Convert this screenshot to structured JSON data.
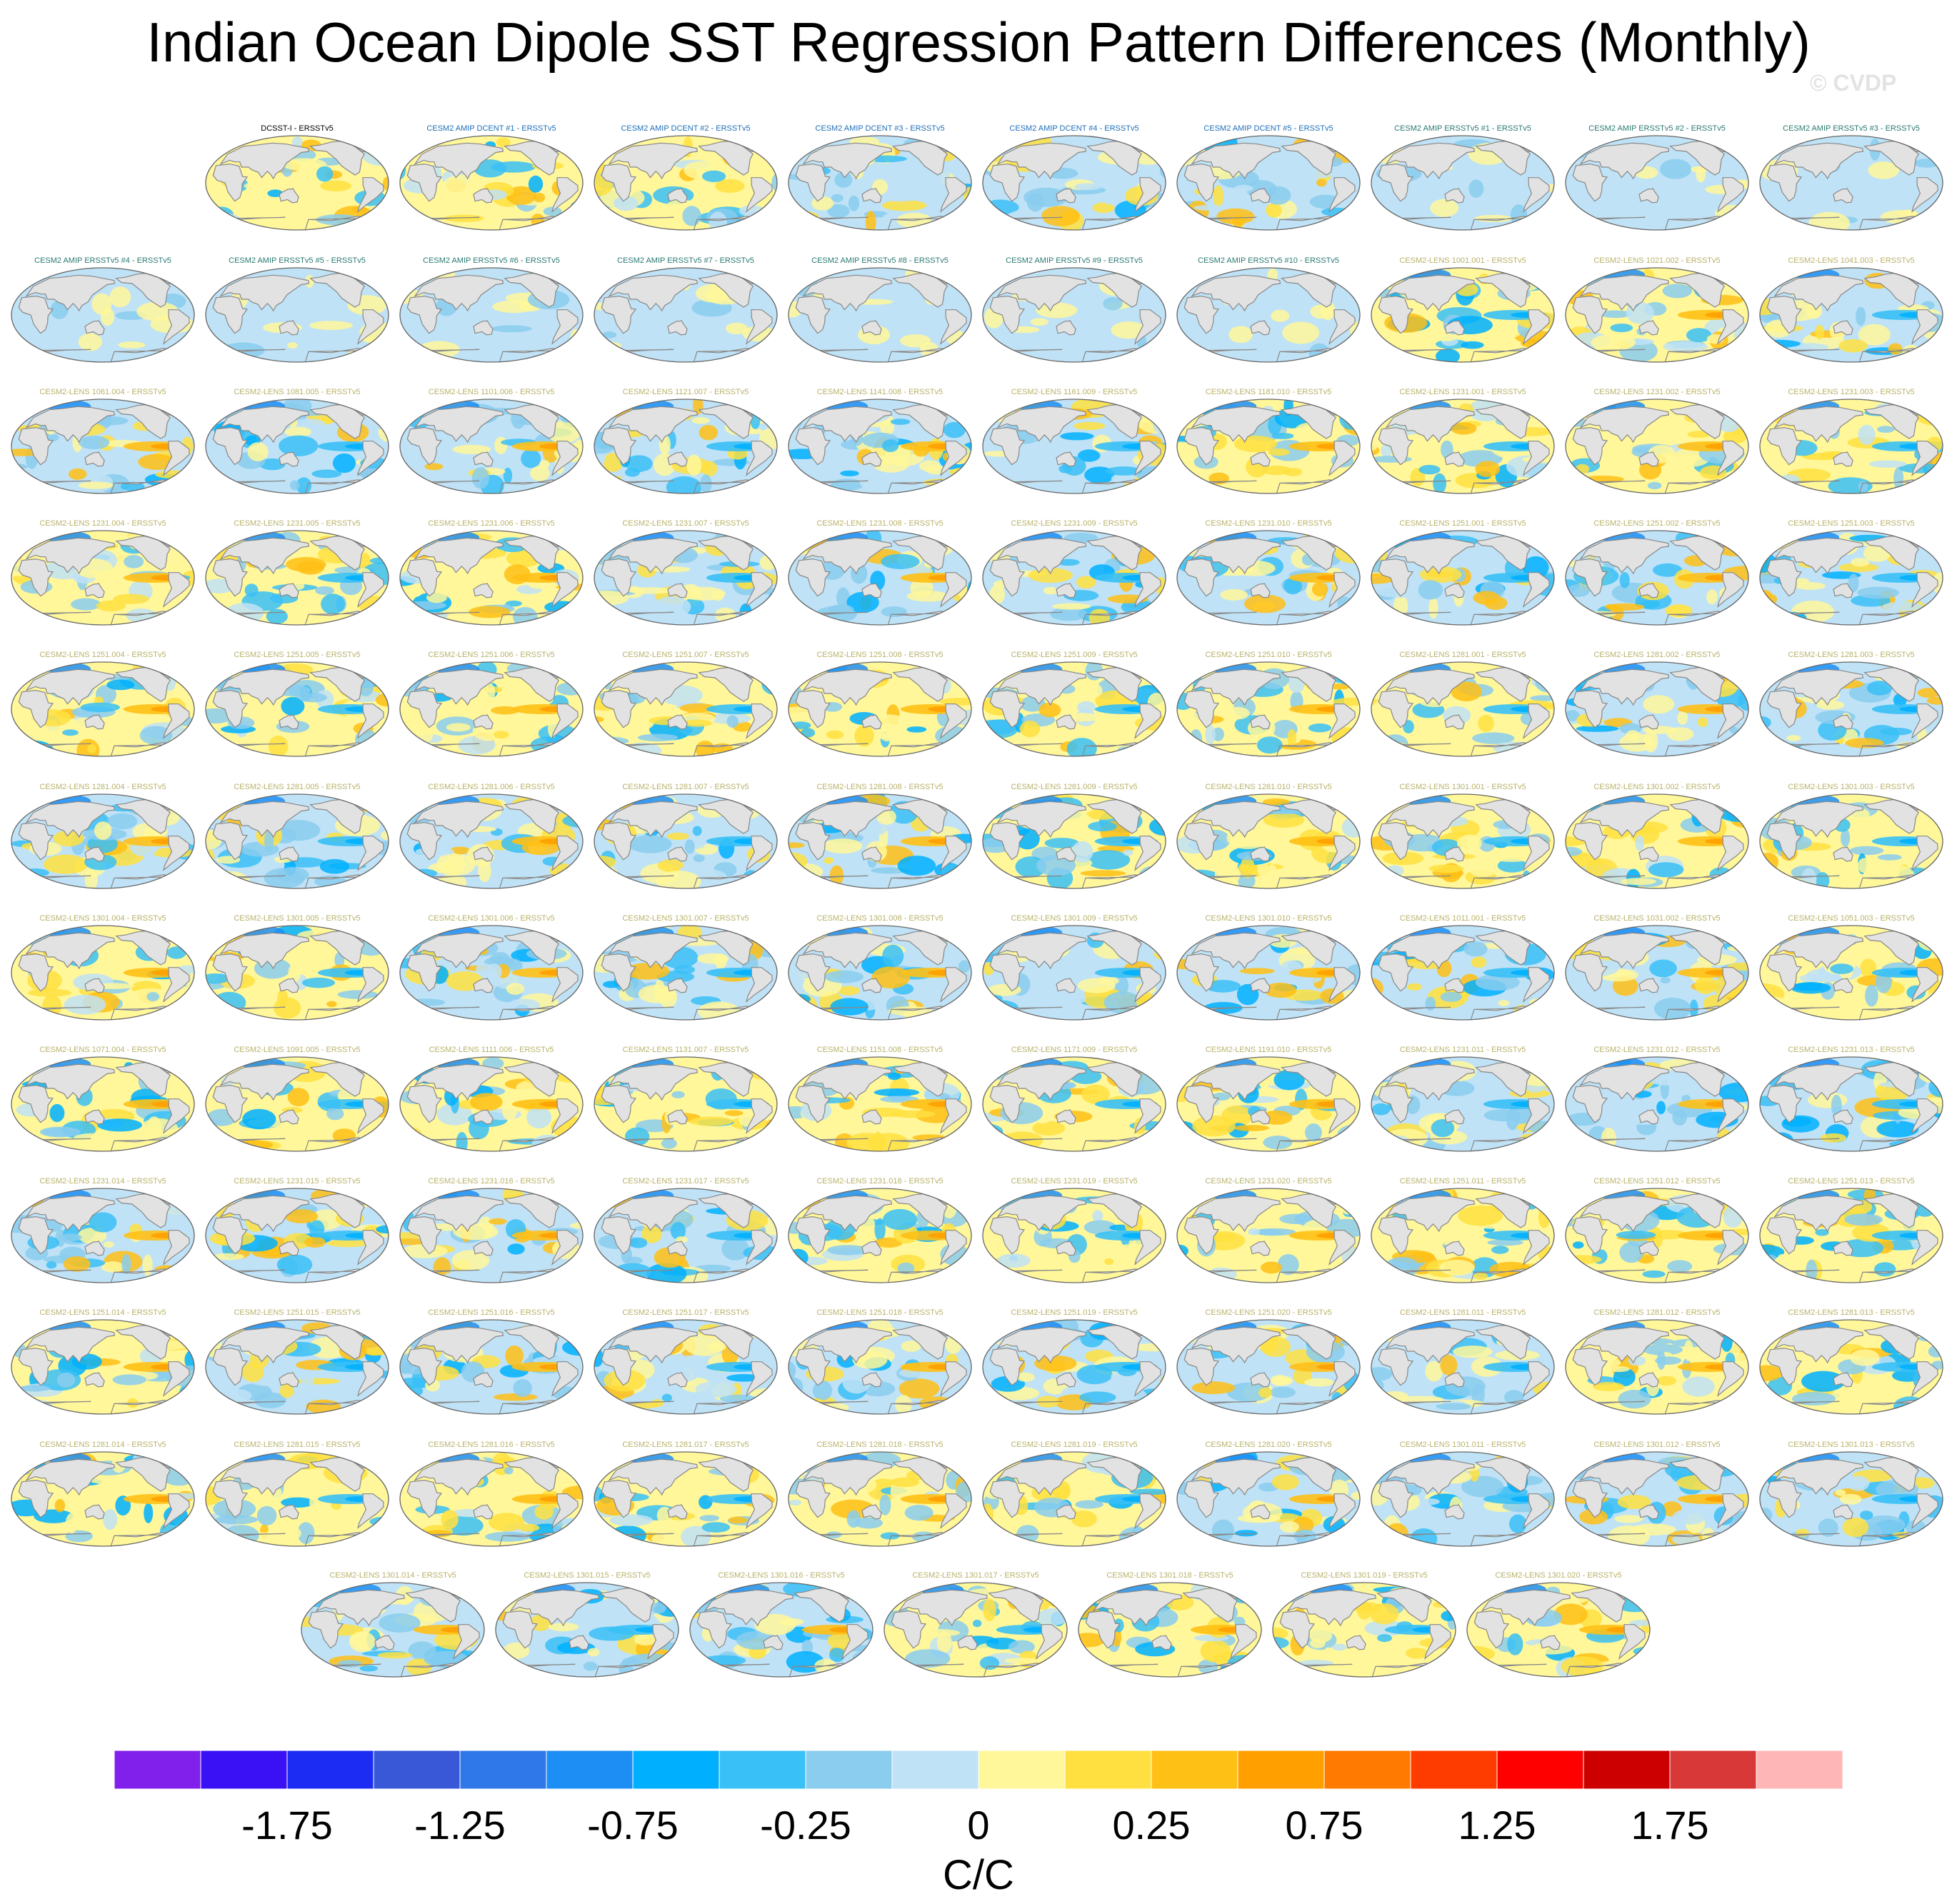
{
  "title": "Indian Ocean Dipole SST Regression Pattern Differences (Monthly)",
  "watermark": "© CVDP",
  "colors": {
    "title_obs": "#000000",
    "title_amip_dcent": "#1f6fb8",
    "title_amip_ersst": "#2a7a72",
    "title_lens": "#b8b26a",
    "land": "#e2e2e2",
    "coast": "#888888"
  },
  "panels": [
    {
      "label": "DCSST-I - ERSSTv5",
      "group": "obs"
    },
    {
      "label": "CESM2 AMIP DCENT #1 - ERSSTv5",
      "group": "amip_dcent"
    },
    {
      "label": "CESM2 AMIP DCENT #2 - ERSSTv5",
      "group": "amip_dcent"
    },
    {
      "label": "CESM2 AMIP DCENT #3 - ERSSTv5",
      "group": "amip_dcent"
    },
    {
      "label": "CESM2 AMIP DCENT #4 - ERSSTv5",
      "group": "amip_dcent"
    },
    {
      "label": "CESM2 AMIP DCENT #5 - ERSSTv5",
      "group": "amip_dcent"
    },
    {
      "label": "CESM2 AMIP ERSSTv5 #1 - ERSSTv5",
      "group": "amip_ersst"
    },
    {
      "label": "CESM2 AMIP ERSSTv5 #2 - ERSSTv5",
      "group": "amip_ersst"
    },
    {
      "label": "CESM2 AMIP ERSSTv5 #3 - ERSSTv5",
      "group": "amip_ersst"
    },
    {
      "label": "CESM2 AMIP ERSSTv5 #4 - ERSSTv5",
      "group": "amip_ersst"
    },
    {
      "label": "CESM2 AMIP ERSSTv5 #5 - ERSSTv5",
      "group": "amip_ersst"
    },
    {
      "label": "CESM2 AMIP ERSSTv5 #6 - ERSSTv5",
      "group": "amip_ersst"
    },
    {
      "label": "CESM2 AMIP ERSSTv5 #7 - ERSSTv5",
      "group": "amip_ersst"
    },
    {
      "label": "CESM2 AMIP ERSSTv5 #8 - ERSSTv5",
      "group": "amip_ersst"
    },
    {
      "label": "CESM2 AMIP ERSSTv5 #9 - ERSSTv5",
      "group": "amip_ersst"
    },
    {
      "label": "CESM2 AMIP ERSSTv5 #10 - ERSSTv5",
      "group": "amip_ersst"
    },
    {
      "label": "CESM2-LENS 1001.001 - ERSSTv5",
      "group": "lens"
    },
    {
      "label": "CESM2-LENS 1021.002 - ERSSTv5",
      "group": "lens"
    },
    {
      "label": "CESM2-LENS 1041.003 - ERSSTv5",
      "group": "lens"
    },
    {
      "label": "CESM2-LENS 1061.004 - ERSSTv5",
      "group": "lens"
    },
    {
      "label": "CESM2-LENS 1081.005 - ERSSTv5",
      "group": "lens"
    },
    {
      "label": "CESM2-LENS 1101.006 - ERSSTv5",
      "group": "lens"
    },
    {
      "label": "CESM2-LENS 1121.007 - ERSSTv5",
      "group": "lens"
    },
    {
      "label": "CESM2-LENS 1141.008 - ERSSTv5",
      "group": "lens"
    },
    {
      "label": "CESM2-LENS 1161.009 - ERSSTv5",
      "group": "lens"
    },
    {
      "label": "CESM2-LENS 1181.010 - ERSSTv5",
      "group": "lens"
    },
    {
      "label": "CESM2-LENS 1231.001 - ERSSTv5",
      "group": "lens"
    },
    {
      "label": "CESM2-LENS 1231.002 - ERSSTv5",
      "group": "lens"
    },
    {
      "label": "CESM2-LENS 1231.003 - ERSSTv5",
      "group": "lens"
    },
    {
      "label": "CESM2-LENS 1231.004 - ERSSTv5",
      "group": "lens"
    },
    {
      "label": "CESM2-LENS 1231.005 - ERSSTv5",
      "group": "lens"
    },
    {
      "label": "CESM2-LENS 1231.006 - ERSSTv5",
      "group": "lens"
    },
    {
      "label": "CESM2-LENS 1231.007 - ERSSTv5",
      "group": "lens"
    },
    {
      "label": "CESM2-LENS 1231.008 - ERSSTv5",
      "group": "lens"
    },
    {
      "label": "CESM2-LENS 1231.009 - ERSSTv5",
      "group": "lens"
    },
    {
      "label": "CESM2-LENS 1231.010 - ERSSTv5",
      "group": "lens"
    },
    {
      "label": "CESM2-LENS 1251.001 - ERSSTv5",
      "group": "lens"
    },
    {
      "label": "CESM2-LENS 1251.002 - ERSSTv5",
      "group": "lens"
    },
    {
      "label": "CESM2-LENS 1251.003 - ERSSTv5",
      "group": "lens"
    },
    {
      "label": "CESM2-LENS 1251.004 - ERSSTv5",
      "group": "lens"
    },
    {
      "label": "CESM2-LENS 1251.005 - ERSSTv5",
      "group": "lens"
    },
    {
      "label": "CESM2-LENS 1251.006 - ERSSTv5",
      "group": "lens"
    },
    {
      "label": "CESM2-LENS 1251.007 - ERSSTv5",
      "group": "lens"
    },
    {
      "label": "CESM2-LENS 1251.008 - ERSSTv5",
      "group": "lens"
    },
    {
      "label": "CESM2-LENS 1251.009 - ERSSTv5",
      "group": "lens"
    },
    {
      "label": "CESM2-LENS 1251.010 - ERSSTv5",
      "group": "lens"
    },
    {
      "label": "CESM2-LENS 1281.001 - ERSSTv5",
      "group": "lens"
    },
    {
      "label": "CESM2-LENS 1281.002 - ERSSTv5",
      "group": "lens"
    },
    {
      "label": "CESM2-LENS 1281.003 - ERSSTv5",
      "group": "lens"
    },
    {
      "label": "CESM2-LENS 1281.004 - ERSSTv5",
      "group": "lens"
    },
    {
      "label": "CESM2-LENS 1281.005 - ERSSTv5",
      "group": "lens"
    },
    {
      "label": "CESM2-LENS 1281.006 - ERSSTv5",
      "group": "lens"
    },
    {
      "label": "CESM2-LENS 1281.007 - ERSSTv5",
      "group": "lens"
    },
    {
      "label": "CESM2-LENS 1281.008 - ERSSTv5",
      "group": "lens"
    },
    {
      "label": "CESM2-LENS 1281.009 - ERSSTv5",
      "group": "lens"
    },
    {
      "label": "CESM2-LENS 1281.010 - ERSSTv5",
      "group": "lens"
    },
    {
      "label": "CESM2-LENS 1301.001 - ERSSTv5",
      "group": "lens"
    },
    {
      "label": "CESM2-LENS 1301.002 - ERSSTv5",
      "group": "lens"
    },
    {
      "label": "CESM2-LENS 1301.003 - ERSSTv5",
      "group": "lens"
    },
    {
      "label": "CESM2-LENS 1301.004 - ERSSTv5",
      "group": "lens"
    },
    {
      "label": "CESM2-LENS 1301.005 - ERSSTv5",
      "group": "lens"
    },
    {
      "label": "CESM2-LENS 1301.006 - ERSSTv5",
      "group": "lens"
    },
    {
      "label": "CESM2-LENS 1301.007 - ERSSTv5",
      "group": "lens"
    },
    {
      "label": "CESM2-LENS 1301.008 - ERSSTv5",
      "group": "lens"
    },
    {
      "label": "CESM2-LENS 1301.009 - ERSSTv5",
      "group": "lens"
    },
    {
      "label": "CESM2-LENS 1301.010 - ERSSTv5",
      "group": "lens"
    },
    {
      "label": "CESM2-LENS 1011.001 - ERSSTv5",
      "group": "lens"
    },
    {
      "label": "CESM2-LENS 1031.002 - ERSSTv5",
      "group": "lens"
    },
    {
      "label": "CESM2-LENS 1051.003 - ERSSTv5",
      "group": "lens"
    },
    {
      "label": "CESM2-LENS 1071.004 - ERSSTv5",
      "group": "lens"
    },
    {
      "label": "CESM2-LENS 1091.005 - ERSSTv5",
      "group": "lens"
    },
    {
      "label": "CESM2-LENS 1111.006 - ERSSTv5",
      "group": "lens"
    },
    {
      "label": "CESM2-LENS 1131.007 - ERSSTv5",
      "group": "lens"
    },
    {
      "label": "CESM2-LENS 1151.008 - ERSSTv5",
      "group": "lens"
    },
    {
      "label": "CESM2-LENS 1171.009 - ERSSTv5",
      "group": "lens"
    },
    {
      "label": "CESM2-LENS 1191.010 - ERSSTv5",
      "group": "lens"
    },
    {
      "label": "CESM2-LENS 1231.011 - ERSSTv5",
      "group": "lens"
    },
    {
      "label": "CESM2-LENS 1231.012 - ERSSTv5",
      "group": "lens"
    },
    {
      "label": "CESM2-LENS 1231.013 - ERSSTv5",
      "group": "lens"
    },
    {
      "label": "CESM2-LENS 1231.014 - ERSSTv5",
      "group": "lens"
    },
    {
      "label": "CESM2-LENS 1231.015 - ERSSTv5",
      "group": "lens"
    },
    {
      "label": "CESM2-LENS 1231.016 - ERSSTv5",
      "group": "lens"
    },
    {
      "label": "CESM2-LENS 1231.017 - ERSSTv5",
      "group": "lens"
    },
    {
      "label": "CESM2-LENS 1231.018 - ERSSTv5",
      "group": "lens"
    },
    {
      "label": "CESM2-LENS 1231.019 - ERSSTv5",
      "group": "lens"
    },
    {
      "label": "CESM2-LENS 1231.020 - ERSSTv5",
      "group": "lens"
    },
    {
      "label": "CESM2-LENS 1251.011 - ERSSTv5",
      "group": "lens"
    },
    {
      "label": "CESM2-LENS 1251.012 - ERSSTv5",
      "group": "lens"
    },
    {
      "label": "CESM2-LENS 1251.013 - ERSSTv5",
      "group": "lens"
    },
    {
      "label": "CESM2-LENS 1251.014 - ERSSTv5",
      "group": "lens"
    },
    {
      "label": "CESM2-LENS 1251.015 - ERSSTv5",
      "group": "lens"
    },
    {
      "label": "CESM2-LENS 1251.016 - ERSSTv5",
      "group": "lens"
    },
    {
      "label": "CESM2-LENS 1251.017 - ERSSTv5",
      "group": "lens"
    },
    {
      "label": "CESM2-LENS 1251.018 - ERSSTv5",
      "group": "lens"
    },
    {
      "label": "CESM2-LENS 1251.019 - ERSSTv5",
      "group": "lens"
    },
    {
      "label": "CESM2-LENS 1251.020 - ERSSTv5",
      "group": "lens"
    },
    {
      "label": "CESM2-LENS 1281.011 - ERSSTv5",
      "group": "lens"
    },
    {
      "label": "CESM2-LENS 1281.012 - ERSSTv5",
      "group": "lens"
    },
    {
      "label": "CESM2-LENS 1281.013 - ERSSTv5",
      "group": "lens"
    },
    {
      "label": "CESM2-LENS 1281.014 - ERSSTv5",
      "group": "lens"
    },
    {
      "label": "CESM2-LENS 1281.015 - ERSSTv5",
      "group": "lens"
    },
    {
      "label": "CESM2-LENS 1281.016 - ERSSTv5",
      "group": "lens"
    },
    {
      "label": "CESM2-LENS 1281.017 - ERSSTv5",
      "group": "lens"
    },
    {
      "label": "CESM2-LENS 1281.018 - ERSSTv5",
      "group": "lens"
    },
    {
      "label": "CESM2-LENS 1281.019 - ERSSTv5",
      "group": "lens"
    },
    {
      "label": "CESM2-LENS 1281.020 - ERSSTv5",
      "group": "lens"
    },
    {
      "label": "CESM2-LENS 1301.011 - ERSSTv5",
      "group": "lens"
    },
    {
      "label": "CESM2-LENS 1301.012 - ERSSTv5",
      "group": "lens"
    },
    {
      "label": "CESM2-LENS 1301.013 - ERSSTv5",
      "group": "lens"
    },
    {
      "label": "CESM2-LENS 1301.014 - ERSSTv5",
      "group": "lens"
    },
    {
      "label": "CESM2-LENS 1301.015 - ERSSTv5",
      "group": "lens"
    },
    {
      "label": "CESM2-LENS 1301.016 - ERSSTv5",
      "group": "lens"
    },
    {
      "label": "CESM2-LENS 1301.017 - ERSSTv5",
      "group": "lens"
    },
    {
      "label": "CESM2-LENS 1301.018 - ERSSTv5",
      "group": "lens"
    },
    {
      "label": "CESM2-LENS 1301.019 - ERSSTv5",
      "group": "lens"
    },
    {
      "label": "CESM2-LENS 1301.020 - ERSSTv5",
      "group": "lens"
    }
  ],
  "chart_data": {
    "type": "heatmap",
    "title": "Indian Ocean Dipole SST Regression Pattern Differences (Monthly)",
    "projection": "robinson",
    "colorbar": {
      "units": "C/C",
      "levels": [
        -2,
        -1.75,
        -1.5,
        -1.25,
        -1,
        -0.75,
        -0.5,
        -0.25,
        -0.1,
        0,
        0.1,
        0.25,
        0.5,
        0.75,
        1,
        1.25,
        1.5,
        1.75,
        2
      ],
      "tick_labels": [
        {
          "value": -1.75,
          "text": "-1.75"
        },
        {
          "value": -1.25,
          "text": "-1.25"
        },
        {
          "value": -0.75,
          "text": "-0.75"
        },
        {
          "value": -0.25,
          "text": "-0.25"
        },
        {
          "value": 0,
          "text": "0"
        },
        {
          "value": 0.25,
          "text": "0.25"
        },
        {
          "value": 0.75,
          "text": "0.75"
        },
        {
          "value": 1.25,
          "text": "1.25"
        },
        {
          "value": 1.75,
          "text": "1.75"
        }
      ],
      "colors": [
        "#8020ea",
        "#3a10f4",
        "#1c2cf2",
        "#3858d8",
        "#2f78ea",
        "#1d8ef4",
        "#00b0ff",
        "#39c0f6",
        "#8acdee",
        "#bfe2f6",
        "#fff79a",
        "#ffe040",
        "#ffc015",
        "#ffa000",
        "#ff7a00",
        "#ff3c00",
        "#ff0000",
        "#cc0000",
        "#d93838",
        "#ffb6b6"
      ]
    }
  }
}
